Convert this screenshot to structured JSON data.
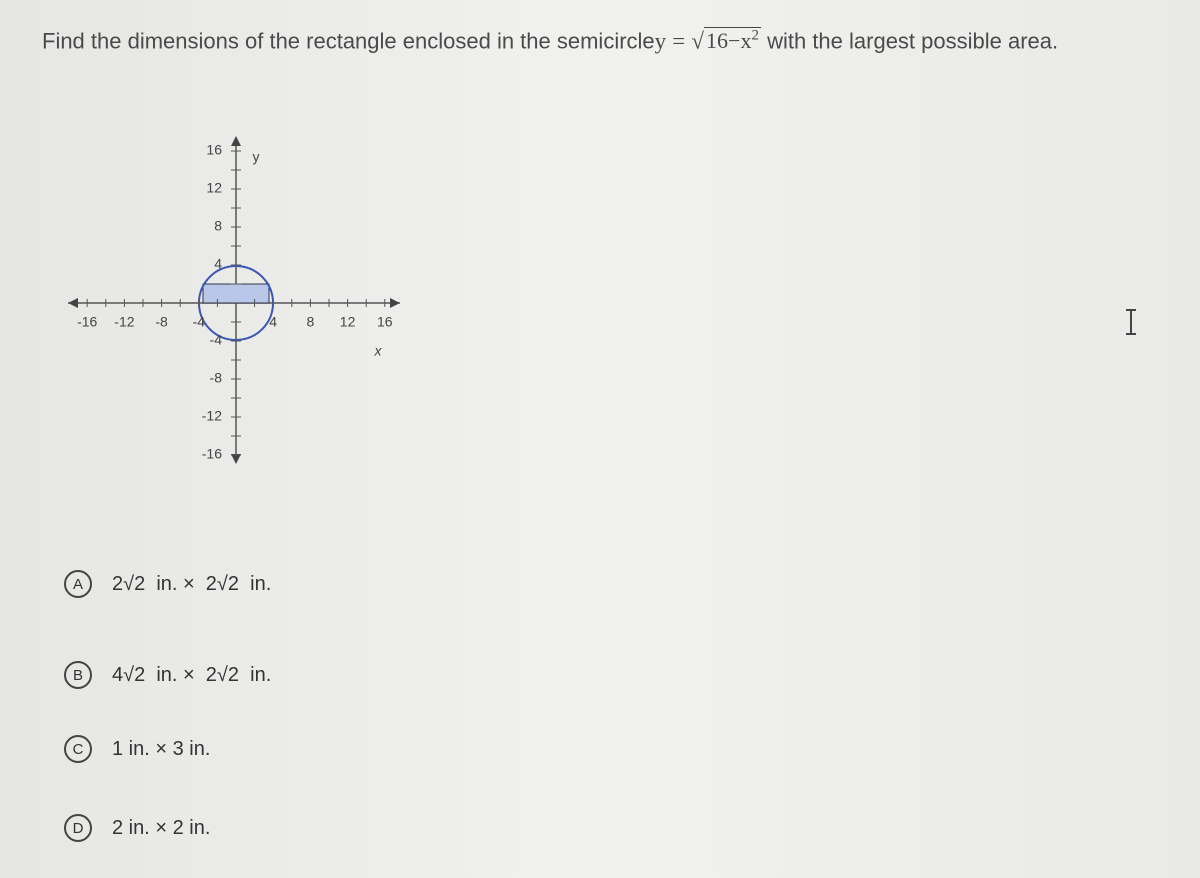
{
  "question": {
    "before": "Find the dimensions of the rectangle enclosed in the semicircle",
    "lhs": "y",
    "equals": "=",
    "radicand": "16−x",
    "exponent": "2",
    "after": "with the largest possible area."
  },
  "graph": {
    "x_label": "x",
    "y_label": "y",
    "x_ticks": [
      "-16",
      "-12",
      "-8",
      "-4",
      "4",
      "8",
      "12",
      "16"
    ],
    "y_ticks": [
      "16",
      "12",
      "8",
      "4",
      "-4",
      "-8",
      "-12",
      "-16"
    ]
  },
  "options": [
    {
      "letter": "A",
      "text": "2√2  in. ×  2√2  in."
    },
    {
      "letter": "B",
      "text": "4√2  in. ×  2√2  in."
    },
    {
      "letter": "C",
      "text": "1 in. × 3 in."
    },
    {
      "letter": "D",
      "text": "2 in. × 2 in."
    }
  ]
}
